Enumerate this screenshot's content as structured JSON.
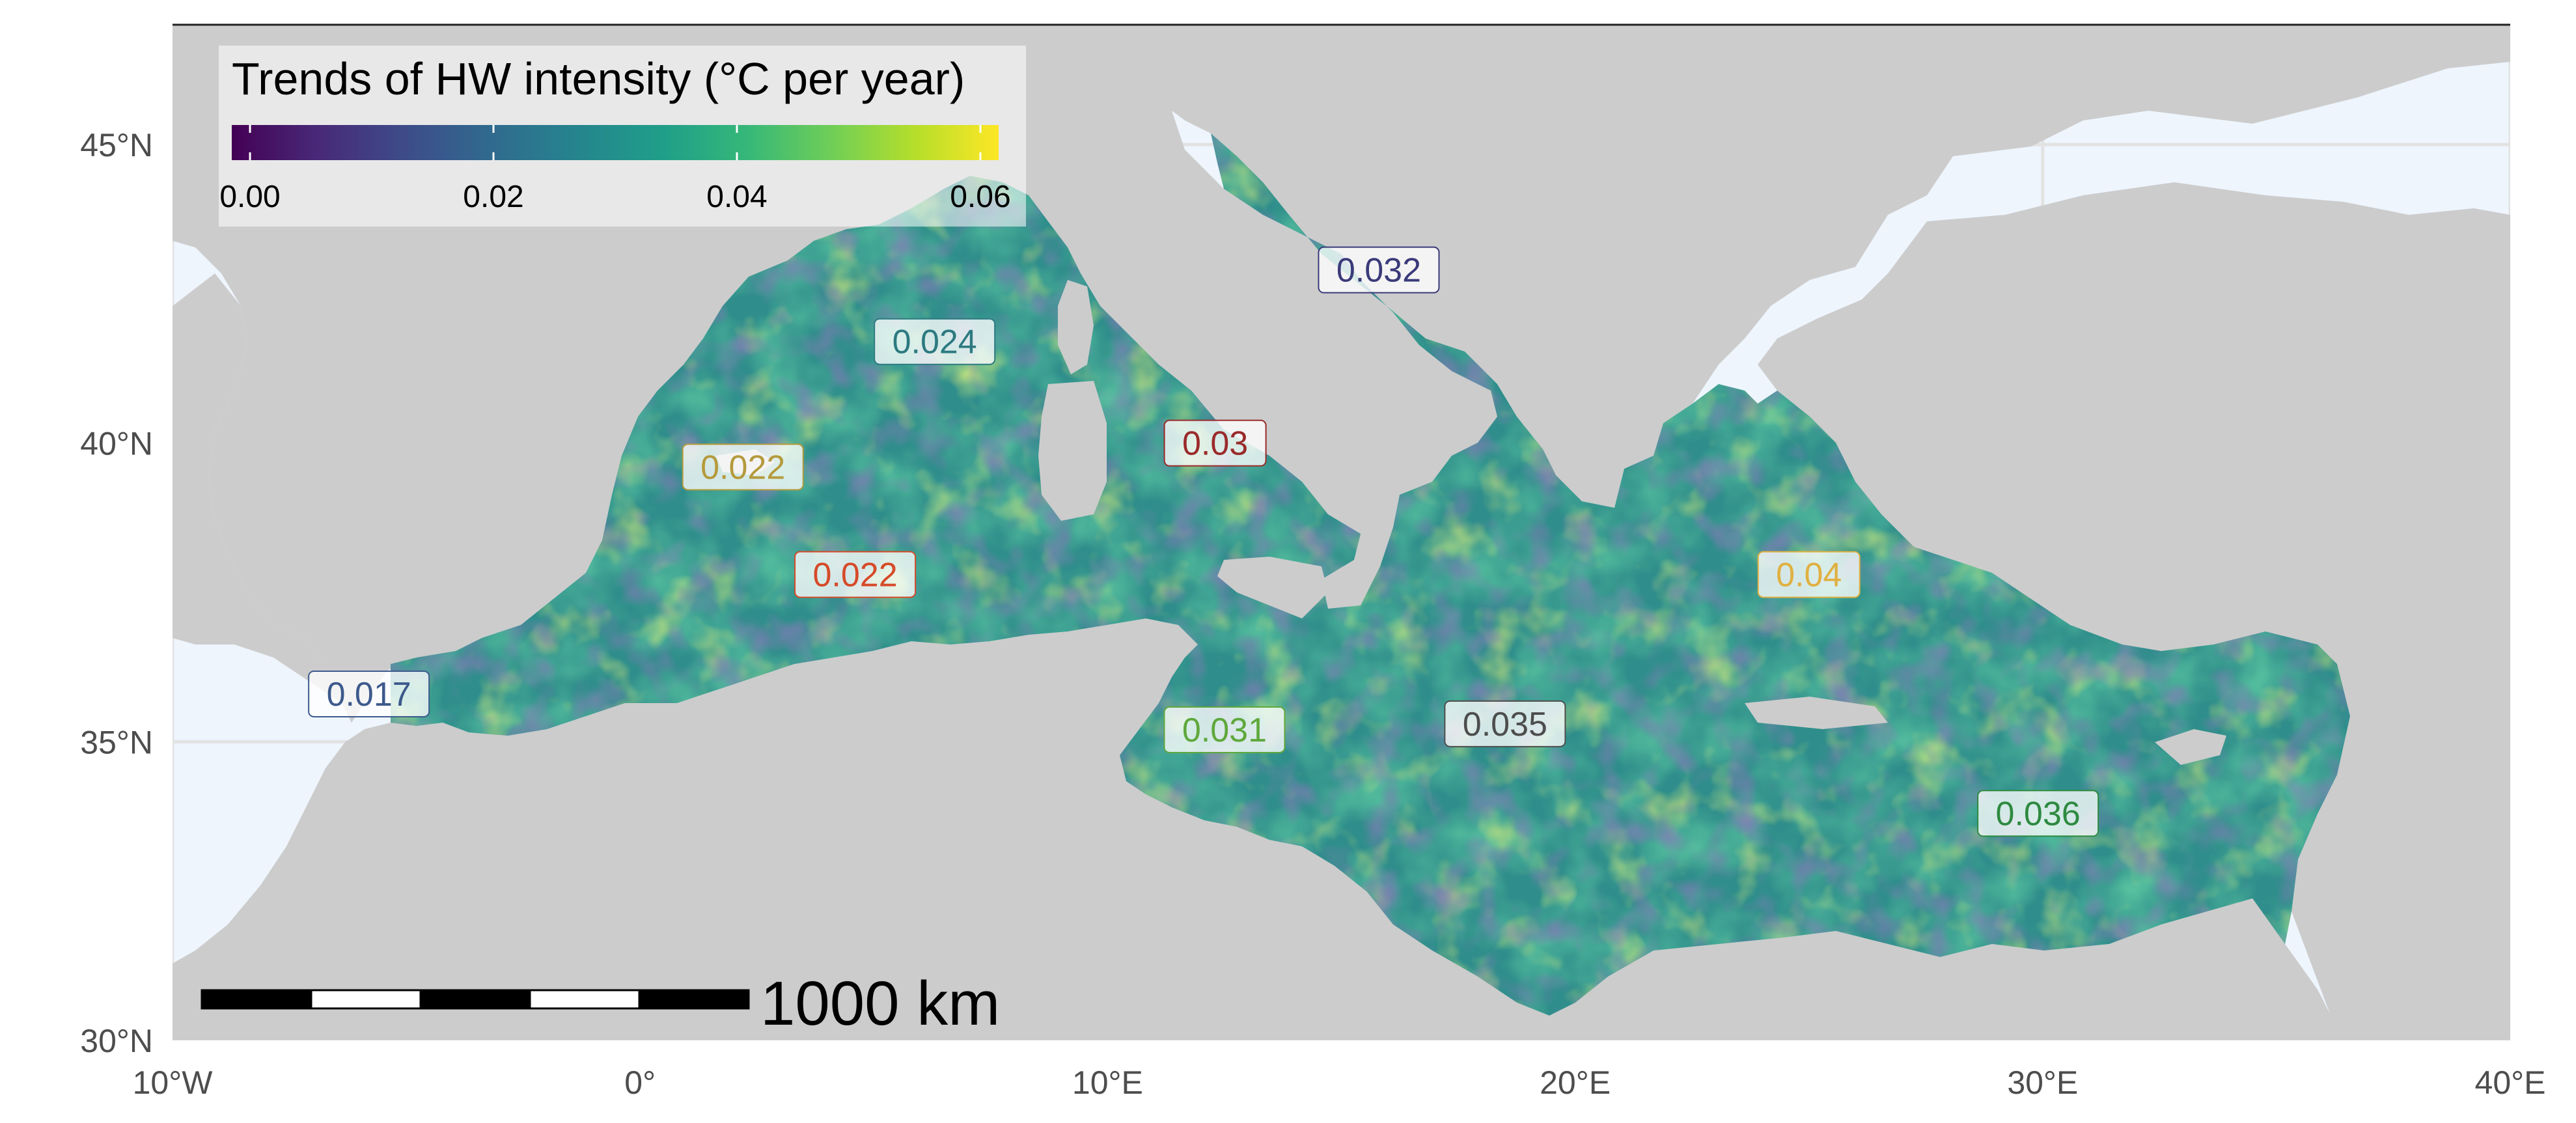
{
  "map": {
    "colors": {
      "ocean": "#eef5fd",
      "land": "#cccccc",
      "grid": "#e2e2e2",
      "sea_base": "#2f8e8b"
    },
    "x_axis": {
      "labels": [
        "10°W",
        "0°",
        "10°E",
        "20°E",
        "30°E",
        "40°E"
      ],
      "values": [
        -10,
        0,
        10,
        20,
        30,
        40
      ]
    },
    "y_axis": {
      "labels": [
        "30°N",
        "35°N",
        "40°N",
        "45°N"
      ],
      "values": [
        30,
        35,
        40,
        45
      ]
    },
    "legend": {
      "title": "Trends of HW intensity (°C per year)",
      "colormap": "viridis",
      "tick_labels": [
        "0.00",
        "0.02",
        "0.04",
        "0.06"
      ],
      "range": [
        -0.0015,
        0.0615
      ]
    },
    "scale_bar": {
      "label": "1000 km"
    },
    "region_labels": [
      {
        "text": "0.017",
        "lon": -5.8,
        "lat": 35.8,
        "color": "#3d5a8c"
      },
      {
        "text": "0.022",
        "lon": 2.2,
        "lat": 39.6,
        "color": "#b59a3c"
      },
      {
        "text": "0.022",
        "lon": 4.6,
        "lat": 37.8,
        "color": "#d64a28"
      },
      {
        "text": "0.024",
        "lon": 6.3,
        "lat": 41.7,
        "color": "#2c7a80"
      },
      {
        "text": "0.03",
        "lon": 12.3,
        "lat": 40.0,
        "color": "#9a2a2a"
      },
      {
        "text": "0.032",
        "lon": 15.8,
        "lat": 42.9,
        "color": "#3a3a7a"
      },
      {
        "text": "0.04",
        "lon": 25.0,
        "lat": 37.8,
        "color": "#e0b040"
      },
      {
        "text": "0.031",
        "lon": 12.5,
        "lat": 35.2,
        "color": "#5fa83c"
      },
      {
        "text": "0.035",
        "lon": 18.5,
        "lat": 35.3,
        "color": "#4d4d4d"
      },
      {
        "text": "0.036",
        "lon": 29.9,
        "lat": 33.8,
        "color": "#2e8a40"
      }
    ]
  }
}
